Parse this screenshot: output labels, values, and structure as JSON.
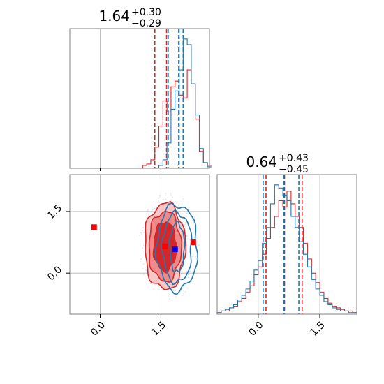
{
  "colors": {
    "red": "#d62728",
    "blue": "#1f77b4",
    "marker_red": "#ff0000",
    "marker_blue": "#0000ff",
    "grid": "#b0b0b0",
    "frame": "#808080"
  },
  "chart_data": [
    {
      "panel": "top-left",
      "type": "histogram",
      "title_value": "1.64",
      "title_plus": "+0.30",
      "title_minus": "−0.29",
      "xlim": [
        -0.75,
        2.7
      ],
      "series": [
        {
          "color": "red",
          "bins": [
            -0.75,
            -0.65,
            -0.55,
            -0.45,
            -0.35,
            -0.25,
            -0.15,
            -0.05,
            0.05,
            0.15,
            0.25,
            0.35,
            0.45,
            0.55,
            0.65,
            0.75,
            0.85,
            0.95,
            1.05,
            1.15,
            1.25,
            1.35,
            1.45,
            1.55,
            1.65,
            1.75,
            1.85,
            1.95,
            2.05,
            2.15,
            2.25,
            2.35,
            2.45,
            2.55,
            2.65
          ],
          "counts": [
            0,
            0,
            0,
            0,
            0,
            0,
            0,
            0,
            0,
            0,
            0,
            0,
            0,
            0,
            0,
            0,
            0,
            0,
            0.02,
            0.03,
            0.06,
            0.15,
            0.3,
            0.48,
            0.4,
            0.58,
            0.62,
            0.52,
            0.5,
            0.7,
            0.6,
            0.35,
            0.12,
            0.04,
            0.02
          ],
          "quantiles": [
            1.35,
            1.64,
            1.94
          ]
        },
        {
          "color": "blue",
          "bins": [
            -0.75,
            -0.65,
            -0.55,
            -0.45,
            -0.35,
            -0.25,
            -0.15,
            -0.05,
            0.05,
            0.15,
            0.25,
            0.35,
            0.45,
            0.55,
            0.65,
            0.75,
            0.85,
            0.95,
            1.05,
            1.15,
            1.25,
            1.35,
            1.45,
            1.55,
            1.65,
            1.75,
            1.85,
            1.95,
            2.05,
            2.15,
            2.25,
            2.35,
            2.45,
            2.55,
            2.65
          ],
          "counts": [
            0,
            0,
            0,
            0,
            0,
            0,
            0,
            0,
            0,
            0,
            0,
            0,
            0,
            0,
            0,
            0,
            0,
            0,
            0,
            0,
            0,
            0,
            0.02,
            0.06,
            0.18,
            0.42,
            0.55,
            0.7,
            0.92,
            0.88,
            0.6,
            0.38,
            0.14,
            0.04,
            0.01
          ],
          "quantiles": [
            1.68,
            1.95,
            2.05
          ]
        }
      ]
    },
    {
      "panel": "bottom-right",
      "type": "histogram",
      "title_value": "0.64",
      "title_plus": "+0.43",
      "title_minus": "−0.45",
      "xlim": [
        -1.0,
        2.4
      ],
      "xticks": [
        0.0,
        1.5
      ],
      "xtick_labels": [
        "0.0",
        "1.5"
      ],
      "series": [
        {
          "color": "red",
          "bins": [
            -1.0,
            -0.9,
            -0.8,
            -0.7,
            -0.6,
            -0.5,
            -0.4,
            -0.3,
            -0.2,
            -0.1,
            0.0,
            0.1,
            0.2,
            0.3,
            0.4,
            0.5,
            0.6,
            0.7,
            0.8,
            0.9,
            1.0,
            1.1,
            1.2,
            1.3,
            1.4,
            1.5,
            1.6,
            1.7,
            1.8,
            1.9,
            2.0,
            2.1,
            2.2,
            2.3
          ],
          "counts": [
            0.01,
            0.02,
            0.02,
            0.04,
            0.05,
            0.08,
            0.1,
            0.14,
            0.18,
            0.25,
            0.3,
            0.38,
            0.48,
            0.55,
            0.62,
            0.72,
            0.68,
            0.78,
            0.7,
            0.62,
            0.55,
            0.45,
            0.35,
            0.26,
            0.2,
            0.14,
            0.1,
            0.07,
            0.05,
            0.04,
            0.03,
            0.02,
            0.02,
            0.01
          ],
          "quantiles": [
            0.19,
            0.64,
            1.07
          ]
        },
        {
          "color": "blue",
          "bins": [
            -1.0,
            -0.9,
            -0.8,
            -0.7,
            -0.6,
            -0.5,
            -0.4,
            -0.3,
            -0.2,
            -0.1,
            0.0,
            0.1,
            0.2,
            0.3,
            0.4,
            0.5,
            0.6,
            0.7,
            0.8,
            0.9,
            1.0,
            1.1,
            1.2,
            1.3,
            1.4,
            1.5,
            1.6,
            1.7,
            1.8,
            1.9,
            2.0,
            2.1,
            2.2,
            2.3
          ],
          "counts": [
            0.01,
            0.02,
            0.03,
            0.04,
            0.06,
            0.09,
            0.12,
            0.16,
            0.21,
            0.28,
            0.34,
            0.45,
            0.55,
            0.7,
            0.82,
            0.8,
            0.75,
            0.72,
            0.62,
            0.55,
            0.46,
            0.38,
            0.3,
            0.22,
            0.16,
            0.12,
            0.08,
            0.06,
            0.04,
            0.03,
            0.02,
            0.02,
            0.01,
            0.01
          ],
          "quantiles": [
            0.12,
            0.62,
            0.99
          ]
        }
      ]
    },
    {
      "panel": "bottom-left",
      "type": "contour",
      "xlim": [
        -0.75,
        2.7
      ],
      "ylim": [
        -1.0,
        2.4
      ],
      "xticks": [
        0.0,
        1.5
      ],
      "xtick_labels": [
        "0.0",
        "1.5"
      ],
      "yticks": [
        0.0,
        1.5
      ],
      "ytick_labels": [
        "0.0",
        "1.5"
      ],
      "red_contours": {
        "center": [
          1.6,
          0.65
        ],
        "radii": [
          [
            0.5,
            1.05
          ],
          [
            0.4,
            0.85
          ],
          [
            0.28,
            0.6
          ]
        ]
      },
      "blue_contours": {
        "center": [
          1.9,
          0.62
        ],
        "radii": [
          [
            0.5,
            1.05
          ],
          [
            0.36,
            0.85
          ],
          [
            0.18,
            0.6
          ]
        ]
      },
      "markers": [
        {
          "color": "marker_red",
          "x": -0.15,
          "y": 1.12
        },
        {
          "color": "marker_red",
          "x": 1.6,
          "y": 0.65
        },
        {
          "color": "marker_red",
          "x": 2.3,
          "y": 0.75
        },
        {
          "color": "marker_blue",
          "x": 1.85,
          "y": 0.58
        }
      ]
    }
  ]
}
